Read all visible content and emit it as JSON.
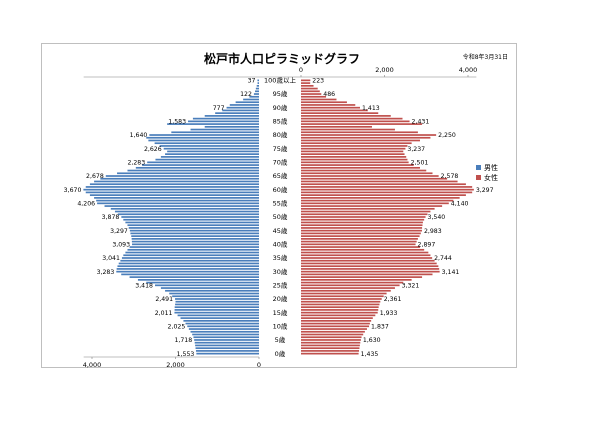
{
  "title": "松戸市人口ピラミッドグラフ",
  "date": "令和8年3月31日",
  "chart_data": {
    "type": "bar",
    "title": "松戸市人口ピラミッドグラフ",
    "orientation": "horizontal",
    "age_labels": [
      "100歳以上",
      "95歳",
      "90歳",
      "85歳",
      "80歳",
      "75歳",
      "70歳",
      "65歳",
      "60歳",
      "55歳",
      "50歳",
      "45歳",
      "40歳",
      "35歳",
      "30歳",
      "25歳",
      "20歳",
      "15歳",
      "10歳",
      "5歳",
      "0歳"
    ],
    "series": [
      {
        "name": "男性",
        "values": [
          37,
          35,
          55,
          75,
          95,
          122,
          230,
          380,
          560,
          700,
          777,
          880,
          1050,
          1300,
          1583,
          1700,
          2200,
          1300,
          1640,
          2100,
          2626,
          2700,
          2650,
          2500,
          2380,
          2283,
          2200,
          2250,
          2350,
          2480,
          2678,
          2800,
          2950,
          3150,
          3400,
          3670,
          3800,
          3950,
          4050,
          4150,
          4206,
          4150,
          4050,
          3950,
          3900,
          3878,
          3700,
          3550,
          3450,
          3380,
          3297,
          3250,
          3200,
          3150,
          3120,
          3093,
          3080,
          3060,
          3050,
          3045,
          3041,
          3100,
          3150,
          3200,
          3250,
          3283,
          3320,
          3360,
          3390,
          3410,
          3418,
          3300,
          3100,
          2900,
          2700,
          2491,
          2350,
          2250,
          2150,
          2080,
          2011,
          2000,
          2010,
          2020,
          2022,
          2025,
          1950,
          1880,
          1810,
          1760,
          1718,
          1680,
          1640,
          1600,
          1570,
          1553,
          1540,
          1530,
          1520,
          1510,
          1500
        ],
        "labels": [
          37,
          122,
          777,
          1583,
          1640,
          2626,
          2283,
          2678,
          3670,
          4206,
          3878,
          3297,
          3093,
          3041,
          3283,
          3418,
          2491,
          2011,
          2025,
          1718,
          1553
        ],
        "color": "#4a7ebb"
      },
      {
        "name": "女性",
        "values": [
          223,
          220,
          300,
          400,
          450,
          486,
          600,
          850,
          1100,
          1300,
          1413,
          1600,
          1850,
          2150,
          2431,
          2600,
          2900,
          1700,
          2250,
          2800,
          3237,
          3100,
          2850,
          2650,
          2550,
          2501,
          2450,
          2480,
          2520,
          2550,
          2578,
          2700,
          2850,
          3000,
          3150,
          3297,
          3500,
          3750,
          3950,
          4100,
          4140,
          4100,
          3950,
          3800,
          3650,
          3540,
          3380,
          3200,
          3100,
          3030,
          2983,
          2950,
          2920,
          2910,
          2900,
          2897,
          2870,
          2840,
          2800,
          2770,
          2744,
          2850,
          2950,
          3050,
          3100,
          3141,
          3200,
          3250,
          3290,
          3310,
          3321,
          3150,
          2900,
          2650,
          2450,
          2361,
          2250,
          2150,
          2050,
          1980,
          1933,
          1900,
          1880,
          1860,
          1850,
          1837,
          1780,
          1720,
          1680,
          1650,
          1630,
          1580,
          1530,
          1490,
          1450,
          1435,
          1420,
          1410,
          1400,
          1390,
          1380
        ],
        "labels": [
          223,
          486,
          1413,
          2431,
          2250,
          3237,
          2501,
          2578,
          3297,
          4140,
          3540,
          2983,
          2897,
          2744,
          3141,
          3321,
          2361,
          1933,
          1837,
          1630,
          1435
        ],
        "color": "#c0504d"
      }
    ],
    "top_axis_ticks": [
      0,
      2000,
      4000
    ],
    "bottom_axis_ticks": [
      4000,
      2000,
      0
    ],
    "xlim": [
      0,
      4200
    ],
    "legend_position": "right",
    "grid": false
  }
}
